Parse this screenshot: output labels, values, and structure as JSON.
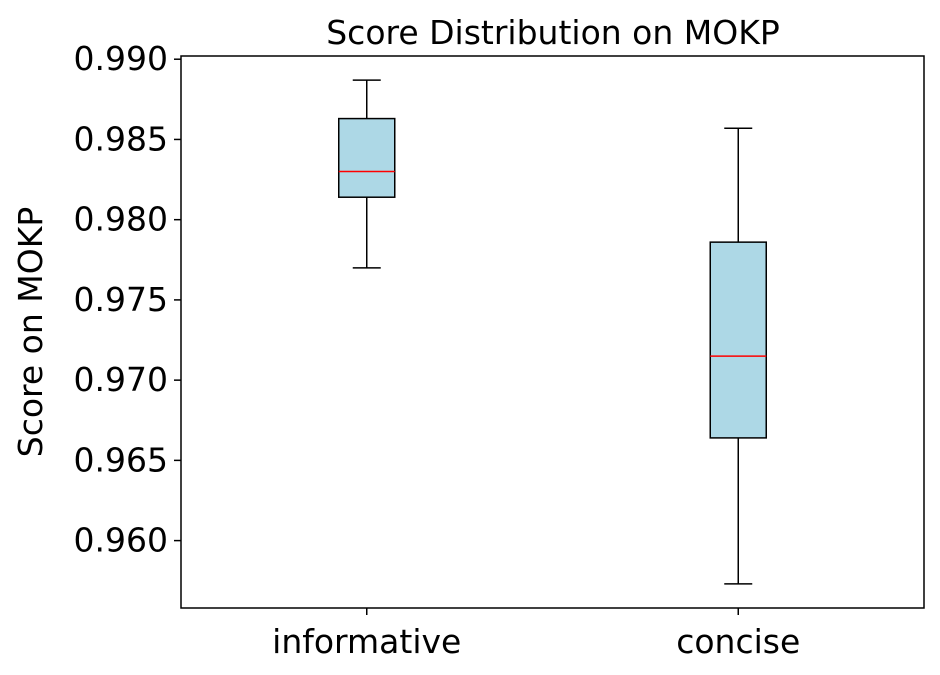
{
  "chart_data": {
    "type": "boxplot",
    "title": "Score Distribution on MOKP",
    "xlabel": "",
    "ylabel": "Score on MOKP",
    "categories": [
      "informative",
      "concise"
    ],
    "boxes": [
      {
        "category": "informative",
        "whisker_low": 0.977,
        "q1": 0.9814,
        "median": 0.983,
        "q3": 0.9863,
        "whisker_high": 0.9887
      },
      {
        "category": "concise",
        "whisker_low": 0.9573,
        "q1": 0.9664,
        "median": 0.9715,
        "q3": 0.9786,
        "whisker_high": 0.9857
      }
    ],
    "y_ticks": [
      0.96,
      0.965,
      0.97,
      0.975,
      0.98,
      0.985,
      0.99
    ],
    "y_tick_labels": [
      "0.960",
      "0.965",
      "0.970",
      "0.975",
      "0.980",
      "0.985",
      "0.990"
    ],
    "ylim": [
      0.9558,
      0.9902
    ],
    "grid": false,
    "colors": {
      "box_fill": "#add8e6",
      "median_line": "#ff0000",
      "box_edge": "#000000",
      "whisker": "#000000"
    }
  }
}
